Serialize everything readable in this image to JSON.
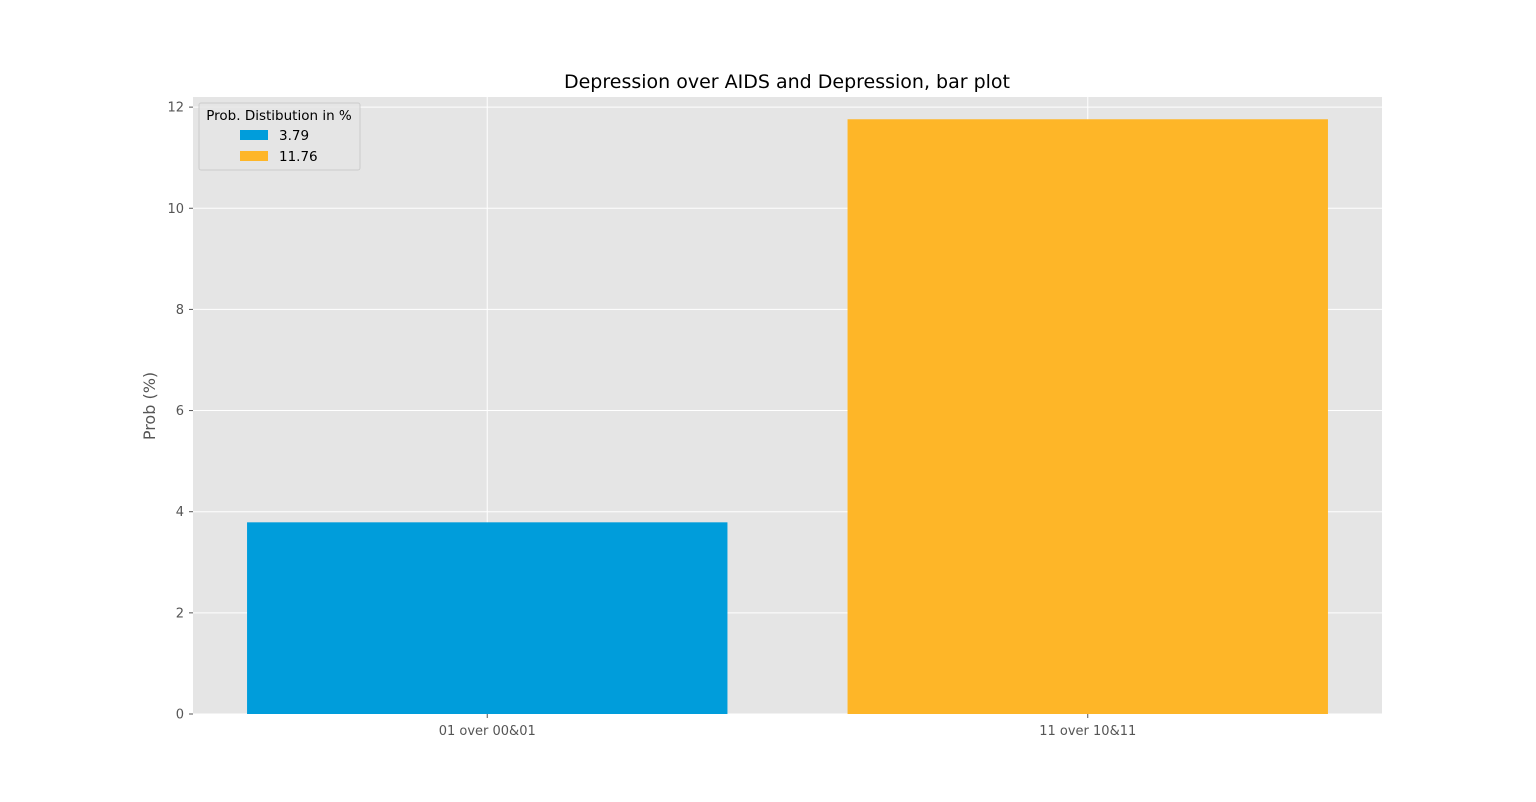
{
  "chart_data": {
    "type": "bar",
    "title": "Depression over AIDS and Depression, bar plot",
    "xlabel": "",
    "ylabel": "Prob (%)",
    "categories": [
      "01 over 00&01",
      "11 over 10&11"
    ],
    "values": [
      3.79,
      11.76
    ],
    "colors": [
      "#009ddb",
      "#feb628"
    ],
    "ylim": [
      0,
      12.2
    ],
    "yticks": [
      0,
      2,
      4,
      6,
      8,
      10,
      12
    ],
    "grid": true,
    "background": "#e5e5e5",
    "legend": {
      "title": "Prob. Distibution in %",
      "placement": "top-left",
      "entries": [
        {
          "label": "3.79",
          "color": "#009ddb"
        },
        {
          "label": "11.76",
          "color": "#feb628"
        }
      ]
    }
  }
}
